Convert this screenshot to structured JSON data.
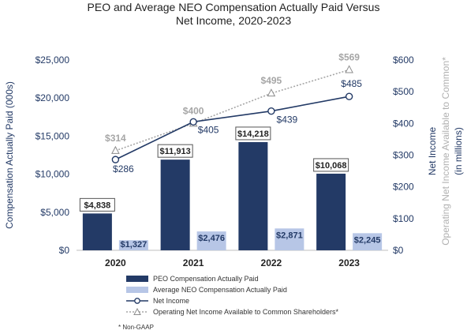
{
  "chart_data": {
    "type": "bar",
    "title": "PEO and Average NEO Compensation Actually Paid Versus Net Income, 2020-2023",
    "title_lines": [
      "PEO and Average NEO Compensation Actually Paid Versus",
      "Net Income, 2020-2023"
    ],
    "categories": [
      "2020",
      "2021",
      "2022",
      "2023"
    ],
    "ylabel": "Compensation Actually Paid (000s)",
    "ylim": [
      0,
      25000
    ],
    "yticks": [
      "$0",
      "$5,000",
      "$10,000",
      "$15,000",
      "$20,000",
      "$25,000"
    ],
    "ylabel_right": [
      "Net Income",
      "Operating Net Income Available to Common*",
      "(in millions)"
    ],
    "ylim_right": [
      0,
      600
    ],
    "yticks_right": [
      "$0",
      "$100",
      "$200",
      "$300",
      "$400",
      "$500",
      "$600"
    ],
    "grid": false,
    "legend_position": "bottom",
    "bar_series": [
      {
        "name": "PEO Compensation Actually Paid",
        "values": [
          4838,
          11913,
          14218,
          10068
        ],
        "labels": [
          "$4,838",
          "$11,913",
          "$14,218",
          "$10,068"
        ],
        "color": "#233a66"
      },
      {
        "name": "Average NEO Compensation Actually Paid",
        "values": [
          1327,
          2476,
          2871,
          2245
        ],
        "labels": [
          "$1,327",
          "$2,476",
          "$2,871",
          "$2,245"
        ],
        "color": "#b7c6e6"
      }
    ],
    "line_series": [
      {
        "name": "Net Income",
        "axis": "right",
        "values": [
          286,
          405,
          439,
          485
        ],
        "labels": [
          "$286",
          "$405",
          "$439",
          "$485"
        ],
        "color": "#233a66",
        "style": "solid",
        "marker": "circle"
      },
      {
        "name": "Operating Net Income Available to Common Shareholders*",
        "axis": "right",
        "values": [
          314,
          400,
          495,
          569
        ],
        "labels": [
          "$314",
          "$400",
          "$495",
          "$569"
        ],
        "color": "#a6a6a6",
        "style": "dotted",
        "marker": "triangle"
      }
    ],
    "footnote": "* Non-GAAP"
  }
}
